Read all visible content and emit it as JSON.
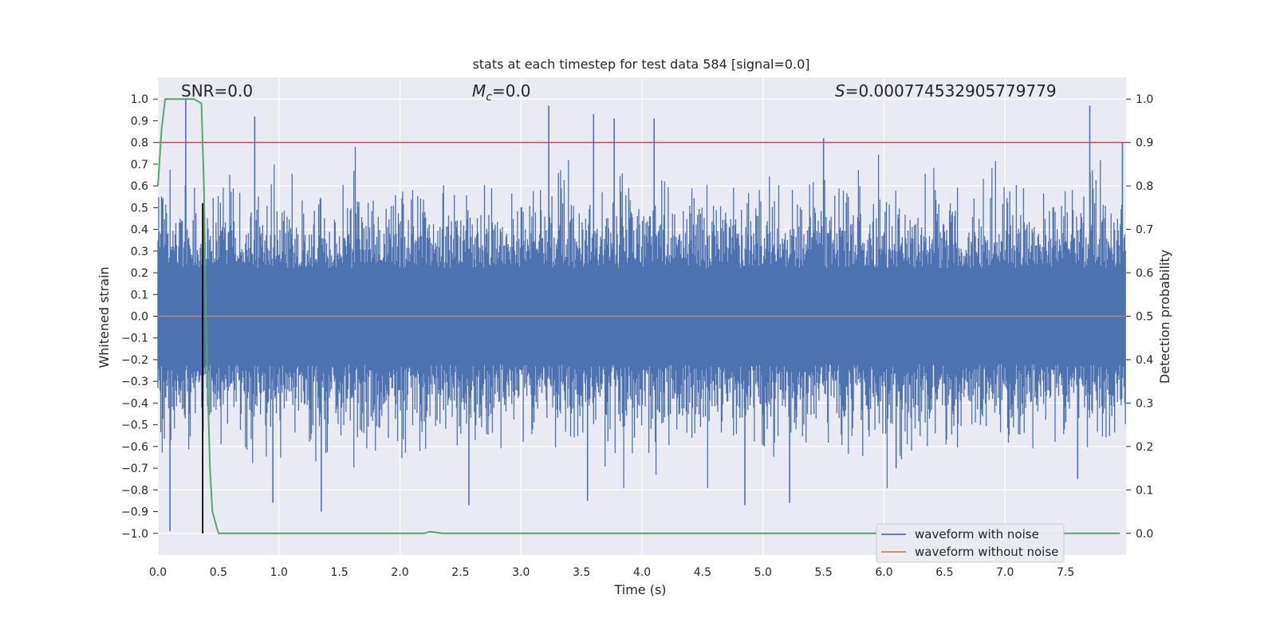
{
  "chart_data": {
    "type": "line",
    "title": "stats at each timestep for test data 584 [signal=0.0]",
    "xlabel": "Time (s)",
    "ylabel": "Whitened strain",
    "ylabel_right": "Detection probability",
    "xlim": [
      0.0,
      8.0
    ],
    "ylim": [
      -1.1,
      1.1
    ],
    "ylim_right": [
      -0.05,
      1.05
    ],
    "x_ticks": [
      "0.0",
      "0.5",
      "1.0",
      "1.5",
      "2.0",
      "2.5",
      "3.0",
      "3.5",
      "4.0",
      "4.5",
      "5.0",
      "5.5",
      "6.0",
      "6.5",
      "7.0",
      "7.5"
    ],
    "y_ticks": [
      "1.0",
      "0.9",
      "0.8",
      "0.7",
      "0.6",
      "0.5",
      "0.4",
      "0.3",
      "0.2",
      "0.1",
      "0.0",
      "−0.1",
      "−0.2",
      "−0.3",
      "−0.4",
      "−0.5",
      "−0.6",
      "−0.7",
      "−0.8",
      "−0.9",
      "−1.0"
    ],
    "y_right_ticks": [
      "1.0",
      "0.9",
      "0.8",
      "0.7",
      "0.6",
      "0.5",
      "0.4",
      "0.3",
      "0.2",
      "0.1",
      "0.0"
    ],
    "annotations": {
      "snr": "SNR=0.0",
      "mc_symbol": "M",
      "mc_sub": "c",
      "mc_value": "=0.0",
      "s_symbol": "S",
      "s_value": "=0.000774532905779779"
    },
    "threshold": 0.9,
    "marker_time": 0.37,
    "legend": {
      "position": "lower-right",
      "entries": [
        {
          "label": "waveform with noise",
          "color": "#4c72b0"
        },
        {
          "label": "waveform without noise",
          "color": "#dd8452"
        }
      ]
    },
    "series": [
      {
        "name": "waveform with noise",
        "color": "#4c72b0",
        "axis": "left",
        "style": "noise",
        "amplitude_typical": 0.3,
        "peak_max": 1.0,
        "peak_min": -0.99
      },
      {
        "name": "waveform without noise",
        "color": "#dd8452",
        "axis": "left",
        "values_constant": 0.0
      },
      {
        "name": "detection probability",
        "color": "#55a868",
        "axis": "right",
        "x": [
          0.0,
          0.03,
          0.06,
          0.1,
          0.2,
          0.3,
          0.36,
          0.38,
          0.4,
          0.43,
          0.45,
          0.5,
          2.2,
          2.25,
          2.35,
          7.95
        ],
        "y": [
          0.8,
          0.93,
          1.0,
          1.0,
          1.0,
          1.0,
          0.99,
          0.8,
          0.45,
          0.15,
          0.05,
          0.0,
          0.0,
          0.004,
          0.0,
          0.0
        ]
      },
      {
        "name": "threshold",
        "color": "#c44e52",
        "axis": "right",
        "values_constant": 0.9
      }
    ],
    "colors": {
      "background": "#eaeaf2",
      "grid": "#ffffff",
      "noise": "#4c72b0",
      "clean": "#dd8452",
      "probability": "#55a868",
      "threshold": "#c44e52",
      "marker": "#000000"
    }
  }
}
